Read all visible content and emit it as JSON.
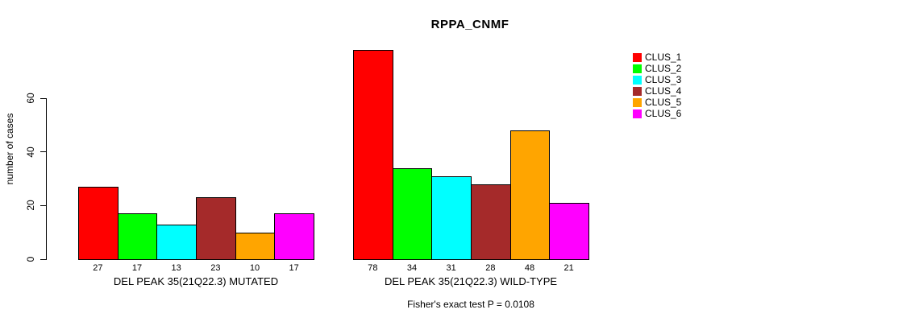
{
  "chart_data": {
    "type": "bar",
    "title": "RPPA_CNMF",
    "ylabel": "number of cases",
    "xlabel": "",
    "ylim": [
      0,
      80
    ],
    "yticks": [
      0,
      20,
      40,
      60
    ],
    "grid": false,
    "legend_position": "top-right",
    "colors": [
      "#FF0000",
      "#00FF00",
      "#00FFFF",
      "#A52A2A",
      "#FFA500",
      "#FF00FF"
    ],
    "series_names": [
      "CLUS_1",
      "CLUS_2",
      "CLUS_3",
      "CLUS_4",
      "CLUS_5",
      "CLUS_6"
    ],
    "groups": [
      {
        "label": "DEL PEAK 35(21Q22.3) MUTATED",
        "values": [
          27,
          17,
          13,
          23,
          10,
          17
        ]
      },
      {
        "label": "DEL PEAK 35(21Q22.3) WILD-TYPE",
        "values": [
          78,
          34,
          31,
          28,
          48,
          21
        ]
      }
    ],
    "bar_value_labels_shown": true,
    "footnote": "Fisher's exact test P = 0.0108"
  }
}
